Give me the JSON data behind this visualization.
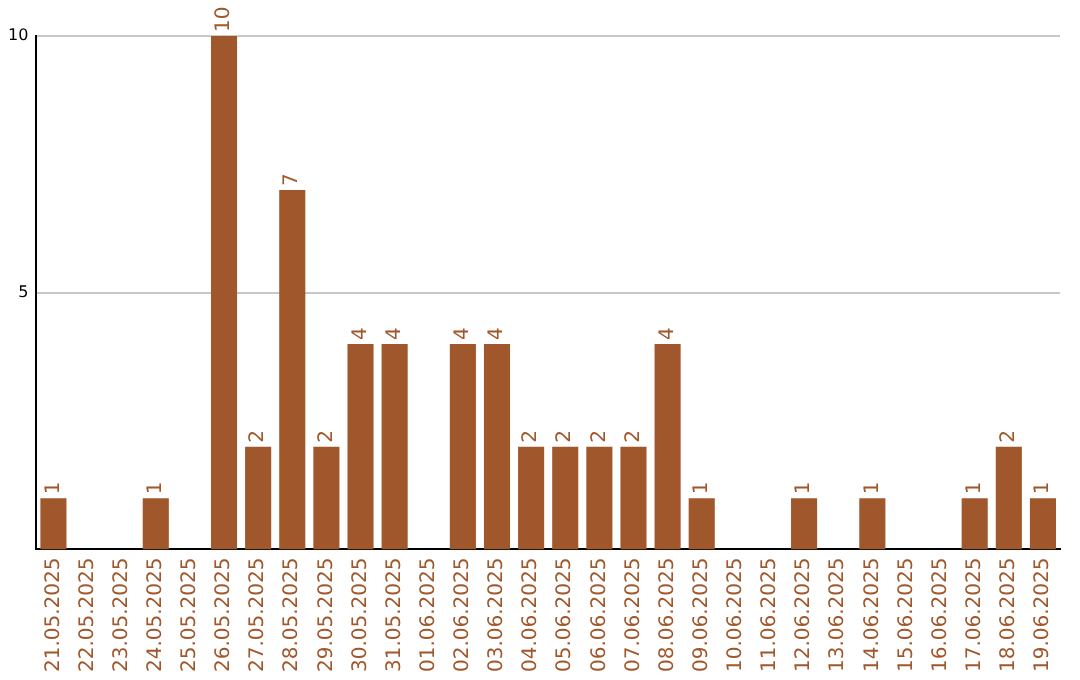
{
  "chart_data": {
    "type": "bar",
    "categories": [
      "21.05.2025",
      "22.05.2025",
      "23.05.2025",
      "24.05.2025",
      "25.05.2025",
      "26.05.2025",
      "27.05.2025",
      "28.05.2025",
      "29.05.2025",
      "30.05.2025",
      "31.05.2025",
      "01.06.2025",
      "02.06.2025",
      "03.06.2025",
      "04.06.2025",
      "05.06.2025",
      "06.06.2025",
      "07.06.2025",
      "08.06.2025",
      "09.06.2025",
      "10.06.2025",
      "11.06.2025",
      "12.06.2025",
      "13.06.2025",
      "14.06.2025",
      "15.06.2025",
      "16.06.2025",
      "17.06.2025",
      "18.06.2025",
      "19.06.2025"
    ],
    "values": [
      1,
      0,
      0,
      1,
      0,
      10,
      2,
      7,
      2,
      4,
      4,
      0,
      4,
      4,
      2,
      2,
      2,
      2,
      4,
      1,
      0,
      0,
      1,
      0,
      1,
      0,
      0,
      1,
      2,
      1
    ],
    "value_labels": [
      "1",
      null,
      null,
      "1",
      null,
      "10",
      "2",
      "7",
      "2",
      "4",
      "4",
      null,
      "4",
      "4",
      "2",
      "2",
      "2",
      "2",
      "4",
      "1",
      null,
      null,
      "1",
      null,
      "1",
      null,
      null,
      "1",
      "2",
      "1"
    ],
    "color": "#a0572b",
    "ylim": [
      0,
      10
    ],
    "yticks": [
      5,
      10
    ],
    "grid": "y",
    "legend": false
  }
}
